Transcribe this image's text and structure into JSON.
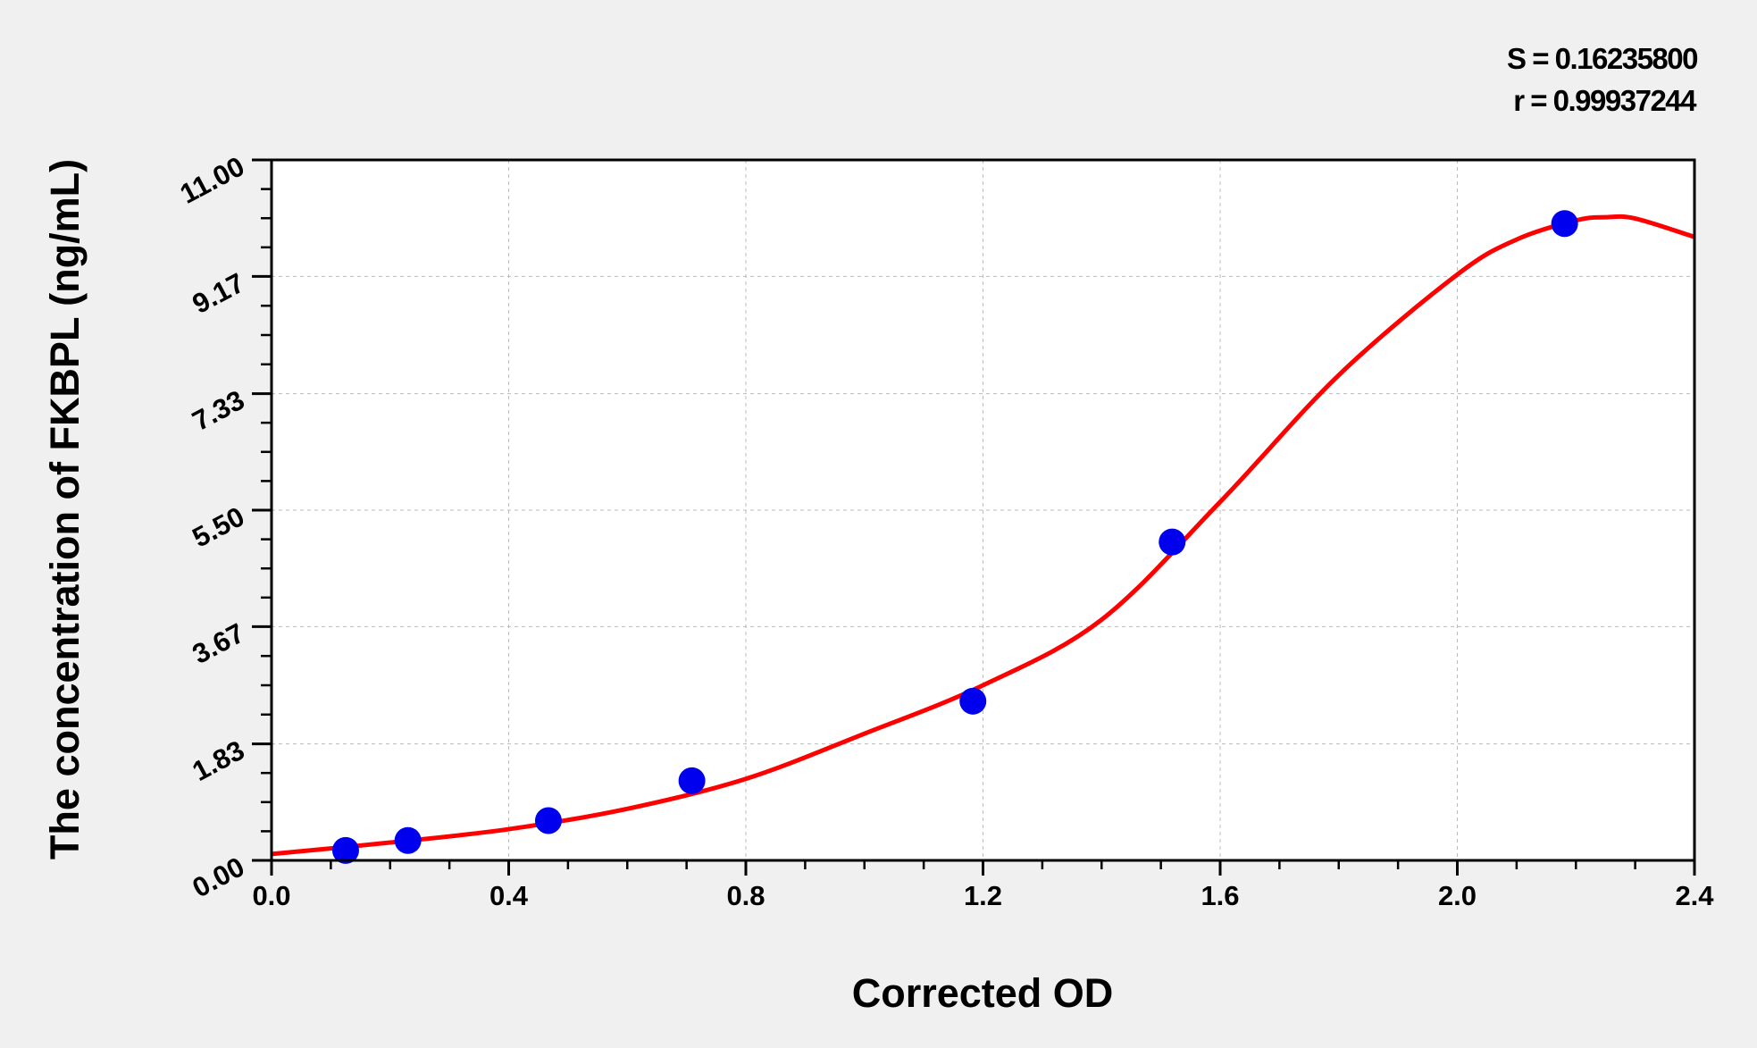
{
  "chart_data": {
    "type": "scatter",
    "title": "",
    "xlabel": "Corrected OD",
    "ylabel": "The concentration of FKBPL (ng/mL)",
    "xlim": [
      0,
      2.4
    ],
    "ylim": [
      0,
      11
    ],
    "x_ticks": [
      "0.0",
      "0.4",
      "0.8",
      "1.2",
      "1.6",
      "2.0",
      "2.4"
    ],
    "y_ticks": [
      "0.00",
      "1.83",
      "3.67",
      "5.50",
      "7.33",
      "9.17",
      "11.00"
    ],
    "grid": true,
    "annotations": {
      "s": "S = 0.16235800",
      "r": "r = 0.99937244"
    },
    "points": {
      "color": "#0000ee",
      "x": [
        0.125,
        0.23,
        0.467,
        0.709,
        1.183,
        1.519,
        2.181
      ],
      "y": [
        0.156,
        0.312,
        0.625,
        1.25,
        2.5,
        5.0,
        10.0
      ]
    },
    "fit_curve": {
      "color": "#ff0000",
      "x": [
        0,
        0.2,
        0.4,
        0.6,
        0.8,
        1.0,
        1.2,
        1.4,
        1.6,
        1.8,
        2.0,
        2.1,
        2.2,
        2.25,
        2.3,
        2.4
      ],
      "y": [
        0.1,
        0.28,
        0.49,
        0.81,
        1.28,
        1.99,
        2.75,
        3.78,
        5.63,
        7.62,
        9.2,
        9.75,
        10.05,
        10.1,
        10.08,
        9.79
      ]
    }
  }
}
